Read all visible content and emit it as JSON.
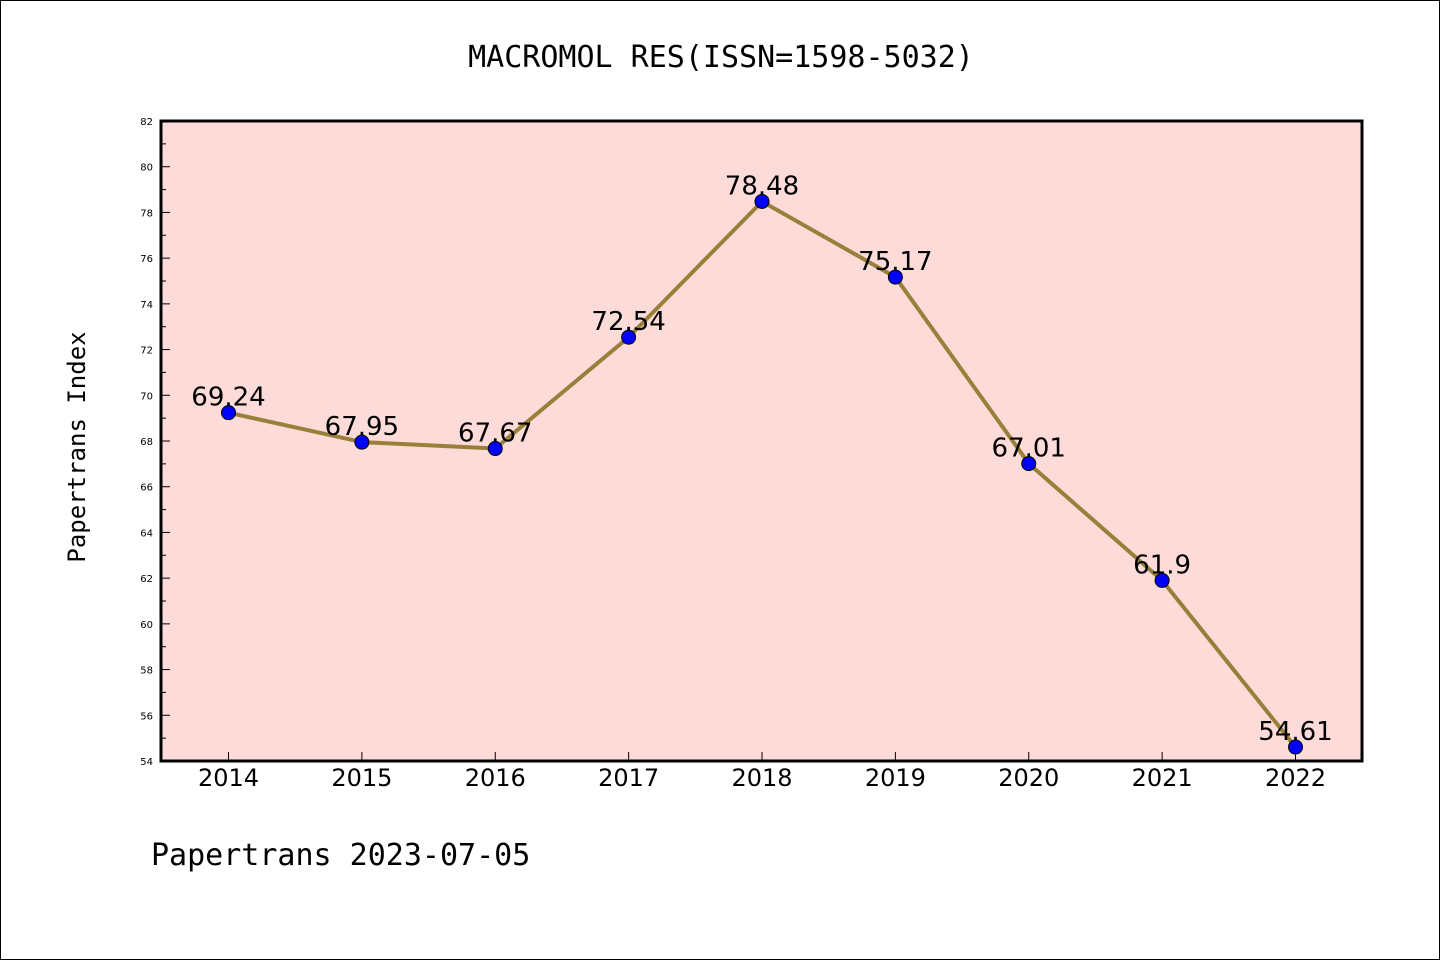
{
  "chart_data": {
    "type": "line",
    "title": "MACROMOL RES(ISSN=1598-5032)",
    "ylabel": "Papertrans Index",
    "xlabel": "",
    "categories": [
      "2014",
      "2015",
      "2016",
      "2017",
      "2018",
      "2019",
      "2020",
      "2021",
      "2022"
    ],
    "series": [
      {
        "values": [
          69.24,
          67.95,
          67.67,
          72.54,
          78.48,
          75.17,
          67.01,
          61.9,
          54.61
        ],
        "labels": [
          "69.24",
          "67.95",
          "67.67",
          "72.54",
          "78.48",
          "75.17",
          "67.01",
          "61.9",
          "54.61"
        ],
        "line_color": "#9a7f3a",
        "marker_color": "#0000ff"
      }
    ],
    "ylim": [
      54,
      82
    ],
    "yticks": [
      "54",
      "56",
      "58",
      "60",
      "62",
      "64",
      "66",
      "68",
      "70",
      "72",
      "74",
      "76",
      "78",
      "80",
      "82"
    ],
    "plot_background": "#fddbd8",
    "grid": false
  },
  "footer": "Papertrans 2023-07-05"
}
